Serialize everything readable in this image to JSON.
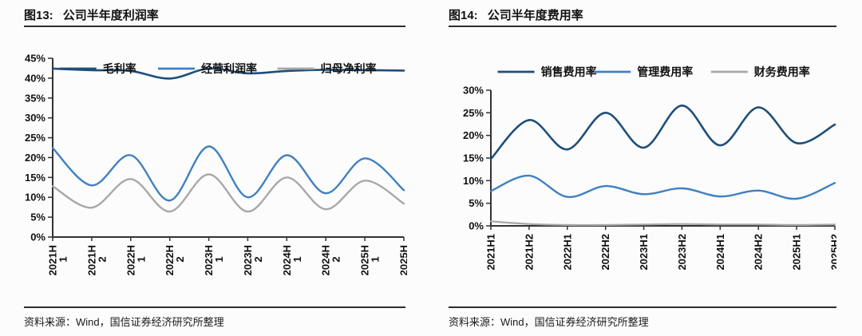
{
  "style": {
    "axis_color": "#333333",
    "tick_label_color": "#111111",
    "dark_blue": "#1F4E79",
    "light_blue": "#3F80C1",
    "gray": "#A8A8A8"
  },
  "chart_data": [
    {
      "type": "line",
      "fig_label": "图13:",
      "title": "公司半年度利润率",
      "source": "资料来源：Wind，国信证券经济研究所整理",
      "categories": [
        "2021H1",
        "2021H2",
        "2022H1",
        "2022H2",
        "2023H1",
        "2023H2",
        "2024H1",
        "2024H2",
        "2025H1",
        "2025H2"
      ],
      "series": [
        {
          "name": "毛利率",
          "color": "#1F4E79",
          "stroke_width": 2.6,
          "values": [
            42.4,
            42.0,
            41.8,
            39.9,
            42.4,
            41.2,
            41.8,
            42.1,
            42.0,
            41.9
          ]
        },
        {
          "name": "经营利润率",
          "color": "#3F80C1",
          "stroke_width": 2.4,
          "values": [
            22.4,
            13.0,
            20.6,
            9.2,
            22.8,
            10.0,
            20.6,
            11.0,
            19.8,
            11.8
          ]
        },
        {
          "name": "归母净利率",
          "color": "#A8A8A8",
          "stroke_width": 2.4,
          "values": [
            12.8,
            7.4,
            14.6,
            6.4,
            15.8,
            6.4,
            15.0,
            7.0,
            14.2,
            8.4
          ]
        }
      ],
      "ylim": [
        0,
        45
      ],
      "ytick_step": 5,
      "ytick_suffix": "%",
      "grid": false,
      "smooth": true,
      "legend_position": "top",
      "x_label_rotation": -90,
      "x_label_two_line": true
    },
    {
      "type": "line",
      "fig_label": "图14:",
      "title": "公司半年度费用率",
      "source": "资料来源：Wind，国信证券经济研究所整理",
      "categories": [
        "2021H1",
        "2021H2",
        "2022H1",
        "2022H2",
        "2023H1",
        "2023H2",
        "2024H1",
        "2024H2",
        "2025H1",
        "2025H2"
      ],
      "series": [
        {
          "name": "销售费用率",
          "color": "#1F4E79",
          "stroke_width": 2.6,
          "values": [
            14.8,
            23.4,
            16.9,
            25.0,
            17.3,
            26.6,
            17.8,
            26.2,
            18.3,
            22.4
          ]
        },
        {
          "name": "管理费用率",
          "color": "#3F80C1",
          "stroke_width": 2.4,
          "values": [
            7.7,
            11.1,
            6.4,
            8.8,
            7.0,
            8.3,
            6.5,
            7.8,
            6.0,
            9.5
          ]
        },
        {
          "name": "财务费用率",
          "color": "#A8A8A8",
          "stroke_width": 2.2,
          "values": [
            1.0,
            0.4,
            0.2,
            0.2,
            0.3,
            0.4,
            0.3,
            0.3,
            0.2,
            0.3
          ]
        }
      ],
      "ylim": [
        0,
        30
      ],
      "ytick_step": 5,
      "ytick_suffix": "%",
      "grid": false,
      "smooth": true,
      "legend_position": "top",
      "x_label_rotation": -90,
      "x_label_two_line": false
    }
  ]
}
